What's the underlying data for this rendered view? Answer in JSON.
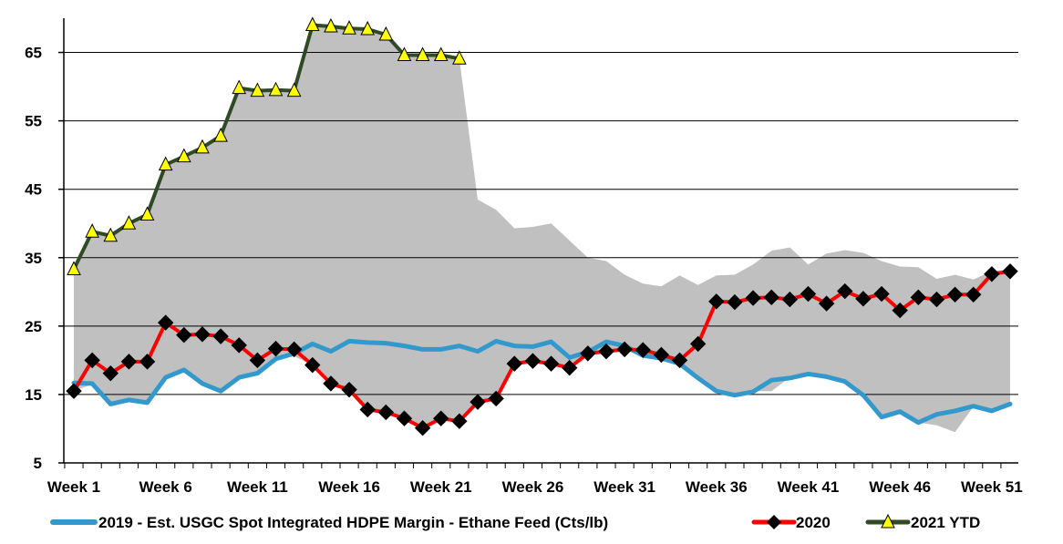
{
  "chart_data": {
    "type": "line",
    "title": "",
    "xlabel": "",
    "ylabel": "",
    "ylim": [
      5,
      70
    ],
    "yticks": [
      5,
      15,
      25,
      35,
      45,
      55,
      65
    ],
    "x_tick_labels": [
      "Week 1",
      "Week 6",
      "Week 11",
      "Week 16",
      "Week 21",
      "Week 26",
      "Week 31",
      "Week 36",
      "Week 41",
      "Week 46",
      "Week 51"
    ],
    "x_tick_weeks": [
      1,
      6,
      11,
      16,
      21,
      26,
      31,
      36,
      41,
      46,
      51
    ],
    "weeks": [
      1,
      2,
      3,
      4,
      5,
      6,
      7,
      8,
      9,
      10,
      11,
      12,
      13,
      14,
      15,
      16,
      17,
      18,
      19,
      20,
      21,
      22,
      23,
      24,
      25,
      26,
      27,
      28,
      29,
      30,
      31,
      32,
      33,
      34,
      35,
      36,
      37,
      38,
      39,
      40,
      41,
      42,
      43,
      44,
      45,
      46,
      47,
      48,
      49,
      50,
      51,
      52
    ],
    "grid": "horizontal",
    "legend_position": "bottom",
    "range_band": {
      "upper": [
        33.5,
        39,
        38.5,
        40,
        41.5,
        48.5,
        50,
        51,
        53,
        60,
        59.5,
        59.5,
        59.5,
        69,
        69,
        68.5,
        68.5,
        67.5,
        64.5,
        64.5,
        64.5,
        64,
        43.5,
        42,
        39.3,
        39.5,
        40,
        37.5,
        35,
        34.5,
        32.5,
        31.2,
        30.8,
        32.4,
        31,
        32.4,
        32.5,
        34,
        36,
        36.5,
        34,
        35.6,
        36.1,
        35.7,
        34.5,
        33.7,
        33.6,
        31.9,
        32.5,
        31.8,
        33,
        33.3
      ],
      "lower": [
        15.5,
        16.5,
        13.6,
        14.2,
        13.8,
        17.5,
        18.5,
        16.5,
        15.5,
        17.5,
        18,
        20,
        20.6,
        19.3,
        16.6,
        15.7,
        12.8,
        12.4,
        11.5,
        10.2,
        11.4,
        11.1,
        13.9,
        14.3,
        19.5,
        19.8,
        19.5,
        18.8,
        20.7,
        21.3,
        21.5,
        20.7,
        20.3,
        19.6,
        17.4,
        15.5,
        15,
        15.5,
        15.5,
        17.5,
        17.9,
        17.5,
        16.8,
        14.8,
        11.7,
        12.5,
        10.9,
        10.5,
        9.5,
        13.2,
        12.6,
        13.5
      ]
    },
    "series": [
      {
        "name": "2019 - Est. USGC Spot Integrated HDPE Margin - Ethane Feed (Cts/lb)",
        "color": "#3399cc",
        "marker": "none",
        "values": [
          16.7,
          16.6,
          13.6,
          14.2,
          13.8,
          17.5,
          18.6,
          16.6,
          15.5,
          17.5,
          18.1,
          20.2,
          21,
          22.4,
          21.3,
          22.8,
          22.6,
          22.5,
          22.1,
          21.6,
          21.6,
          22.1,
          21.3,
          22.8,
          22.1,
          22,
          22.7,
          20.4,
          21.2,
          22.7,
          22.1,
          20.7,
          20.3,
          19.5,
          17.4,
          15.5,
          14.9,
          15.4,
          17.1,
          17.4,
          18,
          17.6,
          16.9,
          14.9,
          11.7,
          12.5,
          10.9,
          12.1,
          12.6,
          13.3,
          12.6,
          13.6
        ]
      },
      {
        "name": "2020",
        "color": "#ff0000",
        "marker": "diamond",
        "values": [
          15.5,
          20,
          18.1,
          19.8,
          19.8,
          25.5,
          23.7,
          23.8,
          23.5,
          22.2,
          20,
          21.7,
          21.6,
          19.3,
          16.6,
          15.7,
          12.8,
          12.4,
          11.5,
          10.1,
          11.5,
          11.1,
          13.9,
          14.4,
          19.5,
          19.9,
          19.5,
          18.9,
          21,
          21.3,
          21.6,
          21.5,
          20.8,
          20,
          22.4,
          28.6,
          28.5,
          29.1,
          29.2,
          28.9,
          29.7,
          28.3,
          30.1,
          29,
          29.7,
          27.3,
          29.2,
          28.9,
          29.6,
          29.6,
          32.6,
          33
        ]
      },
      {
        "name": "2021 YTD",
        "color": "#2f4a24",
        "marker": "triangle",
        "marker_color": "#ffff00",
        "values": [
          33.3,
          38.8,
          38.2,
          40,
          41.3,
          48.6,
          49.8,
          51.1,
          52.8,
          59.8,
          59.4,
          59.5,
          59.4,
          69,
          68.8,
          68.5,
          68.4,
          67.6,
          64.6,
          64.6,
          64.6,
          64.1
        ]
      }
    ]
  },
  "colors": {
    "band": "#c0c0c0",
    "grid": "#000000",
    "axis": "#000000",
    "diamond_fill": "#000000",
    "triangle_fill": "#ffff00",
    "triangle_stroke": "#000000"
  }
}
